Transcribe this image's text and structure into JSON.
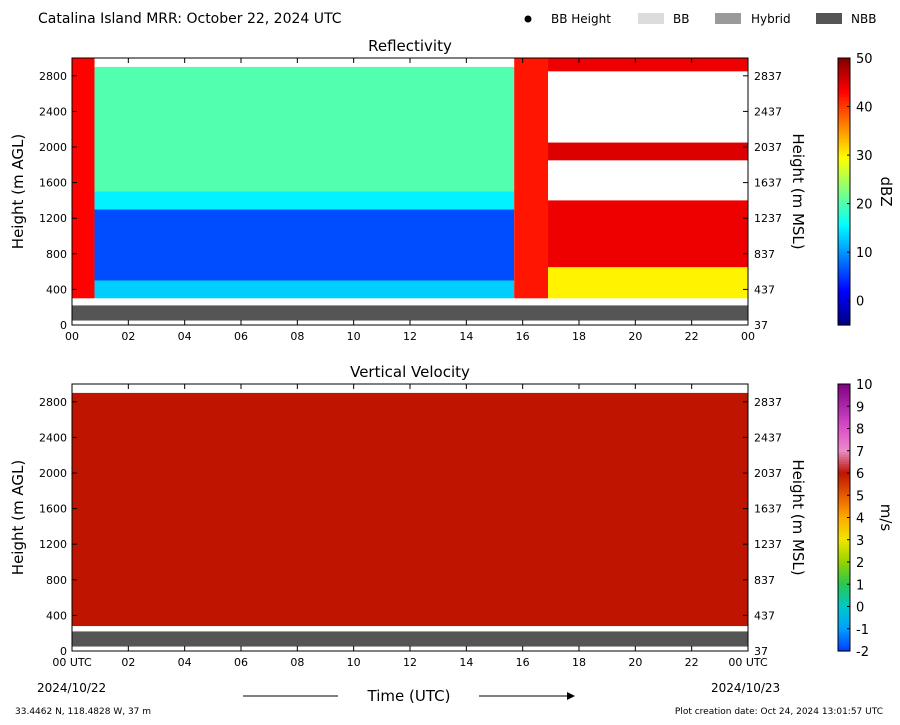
{
  "header": {
    "title": "Catalina Island MRR:  October 22, 2024 UTC",
    "legend": [
      {
        "label": "BB Height",
        "marker": "dot",
        "color": "#000000"
      },
      {
        "label": "BB",
        "marker": "rect",
        "color": "#dcdcdc"
      },
      {
        "label": "Hybrid",
        "marker": "rect",
        "color": "#9a9a9a"
      },
      {
        "label": "NBB",
        "marker": "rect",
        "color": "#555555"
      }
    ]
  },
  "footer": {
    "location": "33.4462 N, 118.4828 W, 37 m",
    "creation": "Plot creation date: Oct 24, 2024 13:01:57 UTC",
    "xlabel": "Time (UTC)",
    "start_date": "2024/10/22",
    "end_date": "2024/10/23"
  },
  "chart_data": [
    {
      "type": "heatmap",
      "title": "Reflectivity",
      "ylabel": "Height (m AGL)",
      "y2label": "Height (m MSL)",
      "xlim": [
        0,
        24
      ],
      "ylim": [
        0,
        3000
      ],
      "x_ticks": [
        "00",
        "02",
        "04",
        "06",
        "08",
        "10",
        "12",
        "14",
        "16",
        "18",
        "20",
        "22",
        "00"
      ],
      "y_ticks": [
        0,
        400,
        800,
        1200,
        1600,
        2000,
        2400,
        2800
      ],
      "y2_ticks": [
        37,
        437,
        837,
        1237,
        1637,
        2037,
        2437,
        2837
      ],
      "colorbar": {
        "label": "dBZ",
        "min": -5,
        "max": 50,
        "ticks": [
          0,
          10,
          20,
          30,
          40,
          50
        ],
        "colormap": "jet"
      },
      "nbb_band_m": [
        50,
        220
      ],
      "regions": [
        {
          "t0": 0.0,
          "t1": 0.8,
          "h0": 300,
          "h1": 3000,
          "dbz": 43
        },
        {
          "t0": 0.8,
          "t1": 15.7,
          "h0": 300,
          "h1": 500,
          "dbz": 13
        },
        {
          "t0": 0.8,
          "t1": 15.7,
          "h0": 500,
          "h1": 1300,
          "dbz": 6
        },
        {
          "t0": 0.8,
          "t1": 15.7,
          "h0": 1300,
          "h1": 1500,
          "dbz": 15
        },
        {
          "t0": 0.8,
          "t1": 15.7,
          "h0": 1500,
          "h1": 2900,
          "dbz": 20
        },
        {
          "t0": 15.7,
          "t1": 16.9,
          "h0": 300,
          "h1": 3000,
          "dbz": 42
        },
        {
          "t0": 16.9,
          "t1": 24.0,
          "h0": 300,
          "h1": 650,
          "dbz": 30
        },
        {
          "t0": 16.9,
          "t1": 24.0,
          "h0": 650,
          "h1": 1400,
          "dbz": 44
        },
        {
          "t0": 16.9,
          "t1": 24.0,
          "h0": 1850,
          "h1": 2050,
          "dbz": 45
        },
        {
          "t0": 16.9,
          "t1": 24.0,
          "h0": 2850,
          "h1": 3000,
          "dbz": 44
        }
      ]
    },
    {
      "type": "heatmap",
      "title": "Vertical Velocity",
      "ylabel": "Height (m AGL)",
      "y2label": "Height (m MSL)",
      "xlim": [
        0,
        24
      ],
      "ylim": [
        0,
        3000
      ],
      "x_ticks": [
        "00 UTC",
        "02",
        "04",
        "06",
        "08",
        "10",
        "12",
        "14",
        "16",
        "18",
        "20",
        "22",
        "00 UTC"
      ],
      "y_ticks": [
        0,
        400,
        800,
        1200,
        1600,
        2000,
        2400,
        2800
      ],
      "y2_ticks": [
        37,
        437,
        837,
        1237,
        1637,
        2037,
        2437,
        2837
      ],
      "colorbar": {
        "label": "m/s",
        "min": -2,
        "max": 10,
        "ticks": [
          -2,
          -1,
          0,
          1,
          2,
          3,
          4,
          5,
          6,
          7,
          8,
          9,
          10
        ]
      },
      "nbb_band_m": [
        50,
        220
      ],
      "regions": [
        {
          "t0": 0.0,
          "t1": 24.0,
          "h0": 280,
          "h1": 2900,
          "ms": 6
        }
      ]
    }
  ]
}
